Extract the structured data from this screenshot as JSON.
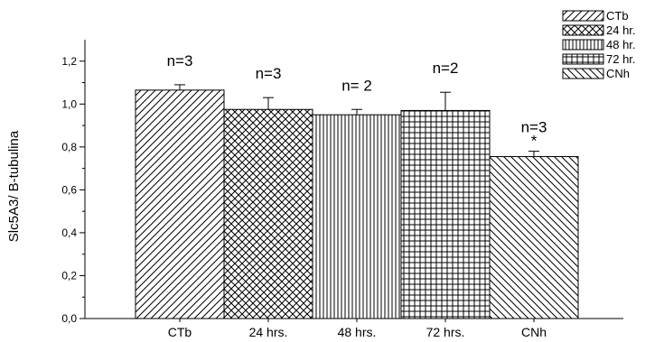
{
  "chart_data": {
    "type": "bar",
    "title": "",
    "xlabel": "",
    "ylabel": "Slc5A3/ B-tubulina",
    "ylim": [
      0,
      1.3
    ],
    "yticks": [
      "0,0",
      "0,2",
      "0,4",
      "0,6",
      "0,8",
      "1,0",
      "1,2"
    ],
    "grid": false,
    "legend_position": "top-right",
    "categories": [
      "CTb",
      "24 hrs.",
      "48 hrs.",
      "72 hrs.",
      "CNh"
    ],
    "values": [
      1.065,
      0.975,
      0.95,
      0.97,
      0.755
    ],
    "errors": [
      0.025,
      0.055,
      0.025,
      0.085,
      0.025
    ],
    "annotations": [
      "n=3",
      "n=3",
      "n= 2",
      "n=2",
      "n=3"
    ],
    "significance": [
      "",
      "",
      "",
      "",
      "*"
    ],
    "legend": [
      "CTb",
      "24 hr.",
      "48 hr.",
      "72 hr.",
      "CNh"
    ],
    "patterns": [
      "diagonal-forward",
      "crosshatch-diagonal",
      "vertical-lines",
      "grid",
      "diagonal-backward"
    ]
  }
}
